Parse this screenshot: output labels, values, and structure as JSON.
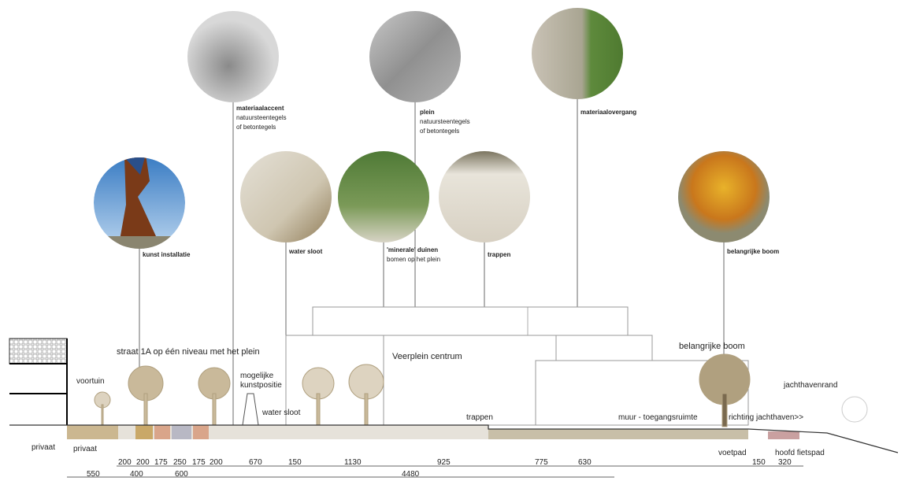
{
  "photos": [
    {
      "lines": [
        "materiaalaccent",
        "natuursteentegels",
        "of betontegels"
      ]
    },
    {
      "lines": [
        "plein",
        "natuursteentegels",
        "of betontegels"
      ]
    },
    {
      "lines": [
        "materiaalovergang"
      ]
    },
    {
      "lines": [
        "kunst installatie"
      ]
    },
    {
      "lines": [
        "water sloot"
      ]
    },
    {
      "lines": [
        "'minerale' duinen",
        "bomen op het plein"
      ]
    },
    {
      "lines": [
        "trappen"
      ]
    },
    {
      "lines": [
        "belangrijke boom"
      ]
    }
  ],
  "section": {
    "street": "straat 1A op één niveau met het plein",
    "front_garden": "voortuin",
    "art_position": [
      "mogelijke",
      "kunstpositie"
    ],
    "water": "water sloot",
    "centre": "Veerplein centrum",
    "stairs": "trappen",
    "tree": "belangrijke boom",
    "harbour_edge": "jachthavenrand",
    "wall": "muur - toegangsruimte",
    "direction": "richting jachthaven>>",
    "private": [
      "privaat",
      "privaat"
    ],
    "footpath": "voetpad",
    "cycle_path": "hoofd fietspad"
  },
  "dimensions": {
    "row1": [
      200,
      200,
      175,
      250,
      175,
      200,
      670,
      150,
      1130,
      925,
      775,
      630,
      150,
      320
    ],
    "row2": [
      550,
      400,
      600,
      4480
    ]
  }
}
